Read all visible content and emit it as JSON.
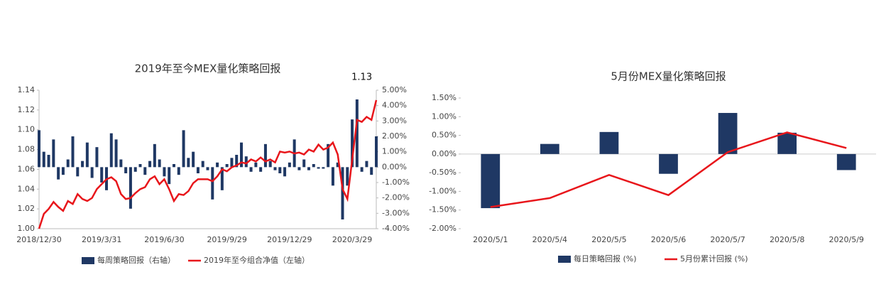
{
  "chart_data": [
    {
      "type": "combo",
      "title": "2019年至今MEX量化策略回报",
      "annotation": "1.13",
      "categories": [
        "2018/12/30",
        null,
        null,
        null,
        null,
        null,
        null,
        null,
        null,
        null,
        null,
        null,
        null,
        "2019/3/31",
        null,
        null,
        null,
        null,
        null,
        null,
        null,
        null,
        null,
        null,
        null,
        null,
        "2019/6/30",
        null,
        null,
        null,
        null,
        null,
        null,
        null,
        null,
        null,
        null,
        null,
        null,
        "2019/9/29",
        null,
        null,
        null,
        null,
        null,
        null,
        null,
        null,
        null,
        null,
        null,
        null,
        "2019/12/29",
        null,
        null,
        null,
        null,
        null,
        null,
        null,
        null,
        null,
        null,
        null,
        null,
        "2020/3/29",
        null,
        null,
        null,
        null,
        null
      ],
      "series": [
        {
          "name": "每周策略回报（右轴）",
          "type": "bar",
          "axis": "y2",
          "color": "#1f3864",
          "values": [
            2.4,
            1.0,
            0.8,
            1.8,
            -0.8,
            -0.5,
            0.5,
            2.0,
            -0.6,
            0.4,
            1.6,
            -0.7,
            1.3,
            -1.0,
            -1.5,
            2.2,
            1.8,
            0.5,
            -0.4,
            -2.7,
            -0.3,
            0.2,
            -0.5,
            0.4,
            1.5,
            0.5,
            -0.6,
            -1.1,
            0.2,
            -0.5,
            2.4,
            0.6,
            1.0,
            -0.4,
            0.4,
            -0.2,
            -2.1,
            0.3,
            -1.5,
            0.2,
            0.6,
            0.8,
            1.6,
            0.7,
            -0.3,
            0.3,
            -0.3,
            1.5,
            0.4,
            -0.2,
            -0.4,
            -0.6,
            0.3,
            1.8,
            -0.2,
            0.5,
            -0.2,
            0.2,
            -0.1,
            -0.1,
            1.5,
            -1.2,
            0.3,
            -3.4,
            -1.2,
            3.1,
            4.4,
            -0.3,
            0.4,
            -0.5,
            2.0
          ]
        },
        {
          "name": "2019年至今组合净值（左轴）",
          "type": "line",
          "color": "#e8161b",
          "values": [
            1.0,
            1.015,
            1.02,
            1.027,
            1.022,
            1.018,
            1.028,
            1.025,
            1.035,
            1.03,
            1.028,
            1.031,
            1.04,
            1.045,
            1.05,
            1.052,
            1.048,
            1.035,
            1.03,
            1.031,
            1.036,
            1.04,
            1.042,
            1.05,
            1.053,
            1.045,
            1.05,
            1.04,
            1.028,
            1.035,
            1.034,
            1.038,
            1.046,
            1.05,
            1.05,
            1.05,
            1.048,
            1.053,
            1.06,
            1.058,
            1.062,
            1.064,
            1.067,
            1.066,
            1.07,
            1.068,
            1.072,
            1.068,
            1.07,
            1.067,
            1.078,
            1.077,
            1.078,
            1.076,
            1.077,
            1.075,
            1.08,
            1.078,
            1.085,
            1.08,
            1.082,
            1.087,
            1.075,
            1.04,
            1.03,
            1.07,
            1.11,
            1.108,
            1.113,
            1.11,
            1.13
          ]
        }
      ],
      "ylim": [
        1.0,
        1.14
      ],
      "yticks": [
        {
          "value": 1.0,
          "label": "1.00"
        },
        {
          "value": 1.02,
          "label": "1.02"
        },
        {
          "value": 1.04,
          "label": "1.04"
        },
        {
          "value": 1.06,
          "label": "1.06"
        },
        {
          "value": 1.08,
          "label": "1.08"
        },
        {
          "value": 1.1,
          "label": "1.10"
        },
        {
          "value": 1.12,
          "label": "1.12"
        },
        {
          "value": 1.14,
          "label": "1.14"
        }
      ],
      "y2lim": [
        -4,
        5
      ],
      "y2ticks": [
        {
          "value": -4,
          "label": "-4.00%"
        },
        {
          "value": -3,
          "label": "-3.00%"
        },
        {
          "value": -2,
          "label": "-2.00%"
        },
        {
          "value": -1,
          "label": "-1.00%"
        },
        {
          "value": 0,
          "label": "0.00%"
        },
        {
          "value": 1,
          "label": "1.00%"
        },
        {
          "value": 2,
          "label": "2.00%"
        },
        {
          "value": 3,
          "label": "3.00%"
        },
        {
          "value": 4,
          "label": "4.00%"
        },
        {
          "value": 5,
          "label": "5.00%"
        }
      ]
    },
    {
      "type": "combo",
      "title": "5月份MEX量化策略回报",
      "categories": [
        "2020/5/1",
        "2020/5/4",
        "2020/5/5",
        "2020/5/6",
        "2020/5/7",
        "2020/5/8",
        "2020/5/9"
      ],
      "series": [
        {
          "name": "每日策略回报 (%)",
          "type": "bar",
          "color": "#1f3864",
          "values": [
            -1.45,
            0.27,
            0.59,
            -0.53,
            1.1,
            0.57,
            -0.43
          ]
        },
        {
          "name": "5月份累计回报 (%)",
          "type": "line",
          "color": "#e8161b",
          "values": [
            -1.42,
            -1.18,
            -0.56,
            -1.1,
            0.05,
            0.58,
            0.16
          ]
        }
      ],
      "ylim": [
        -2,
        1.5
      ],
      "yticks": [
        {
          "value": -2,
          "label": "-2.00%"
        },
        {
          "value": -1.5,
          "label": "-1.50%"
        },
        {
          "value": -1,
          "label": "-1.00%"
        },
        {
          "value": -0.5,
          "label": "-0.50%"
        },
        {
          "value": 0,
          "label": "0.00%"
        },
        {
          "value": 0.5,
          "label": "0.50%"
        },
        {
          "value": 1,
          "label": "1.00%"
        },
        {
          "value": 1.5,
          "label": "1.50%"
        }
      ]
    }
  ]
}
